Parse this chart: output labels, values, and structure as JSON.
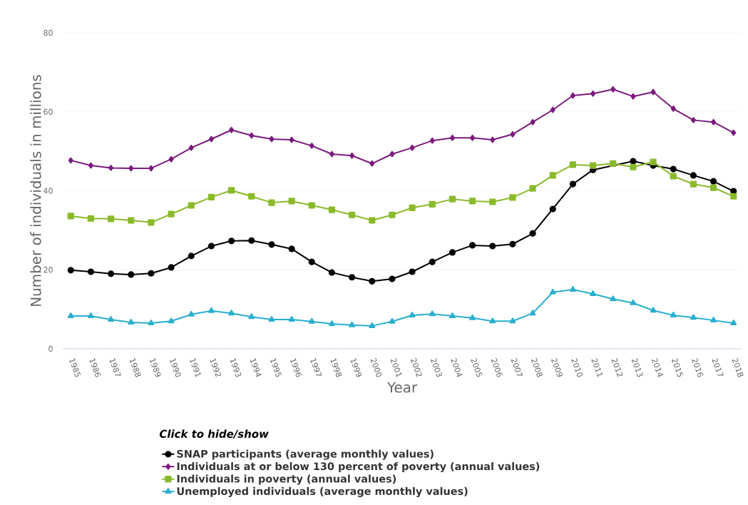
{
  "chart_data": {
    "type": "line",
    "xlabel": "Year",
    "ylabel": "Number of individuals in millions",
    "legend_title": "*Click to hide/show*",
    "categories": [
      "1985",
      "1986",
      "1987",
      "1988",
      "1989",
      "1990",
      "1991",
      "1992",
      "1993",
      "1994",
      "1995",
      "1996",
      "1997",
      "1998",
      "1999",
      "2000",
      "2001",
      "2002",
      "2003",
      "2004",
      "2005",
      "2006",
      "2007",
      "2008",
      "2009",
      "2010",
      "2011",
      "2012",
      "2013",
      "2014",
      "2015",
      "2016",
      "2017",
      "2018"
    ],
    "series": [
      {
        "name": "SNAP participants (average monthly values)",
        "color": "#000000",
        "marker": "circle",
        "values": [
          19.9,
          19.5,
          19.0,
          18.8,
          19.1,
          20.6,
          23.5,
          26.0,
          27.3,
          27.4,
          26.4,
          25.3,
          22.0,
          19.3,
          18.1,
          17.1,
          17.7,
          19.5,
          22.0,
          24.4,
          26.2,
          26.0,
          26.5,
          29.2,
          35.4,
          41.7,
          45.3,
          null,
          47.5,
          46.4,
          45.5,
          43.9,
          42.4,
          39.9
        ]
      },
      {
        "name": "Individuals at or below 130 percent of poverty (annual values)",
        "color": "#7b1a7e",
        "marker": "diamond",
        "values": [
          47.7,
          46.4,
          45.8,
          45.7,
          45.7,
          48.0,
          50.9,
          53.1,
          55.4,
          54.0,
          53.1,
          52.9,
          51.4,
          49.3,
          48.9,
          46.9,
          49.3,
          50.9,
          52.7,
          53.4,
          53.4,
          52.9,
          54.3,
          57.4,
          60.5,
          64.1,
          64.6,
          65.7,
          63.9,
          65.0,
          60.8,
          57.9,
          57.4,
          54.7
        ]
      },
      {
        "name": "Individuals in poverty (annual values)",
        "color": "#8aba2a",
        "marker": "square",
        "values": [
          33.6,
          33.0,
          32.9,
          32.5,
          32.0,
          34.1,
          36.3,
          38.4,
          40.1,
          38.6,
          37.0,
          37.4,
          36.3,
          35.2,
          33.9,
          32.5,
          33.9,
          35.7,
          36.6,
          37.9,
          37.4,
          37.2,
          38.3,
          40.6,
          43.9,
          46.6,
          46.4,
          46.9,
          46.0,
          47.3,
          43.7,
          41.7,
          40.8,
          38.6
        ]
      },
      {
        "name": "Unemployed individuals (average monthly values)",
        "color": "#2aafcf",
        "marker": "triangle",
        "values": [
          8.3,
          8.3,
          7.4,
          6.7,
          6.5,
          7.0,
          8.7,
          9.6,
          9.0,
          8.1,
          7.4,
          7.4,
          6.9,
          6.3,
          6.0,
          5.8,
          6.9,
          8.5,
          8.8,
          8.3,
          7.8,
          7.0,
          7.0,
          9.0,
          14.3,
          15.0,
          13.9,
          12.6,
          11.6,
          9.7,
          8.5,
          7.9,
          7.2,
          6.5
        ]
      }
    ],
    "ylim": [
      0,
      80
    ],
    "yticks": [
      0,
      20,
      40,
      60,
      80
    ],
    "grid": "y",
    "legend": "bottom"
  }
}
